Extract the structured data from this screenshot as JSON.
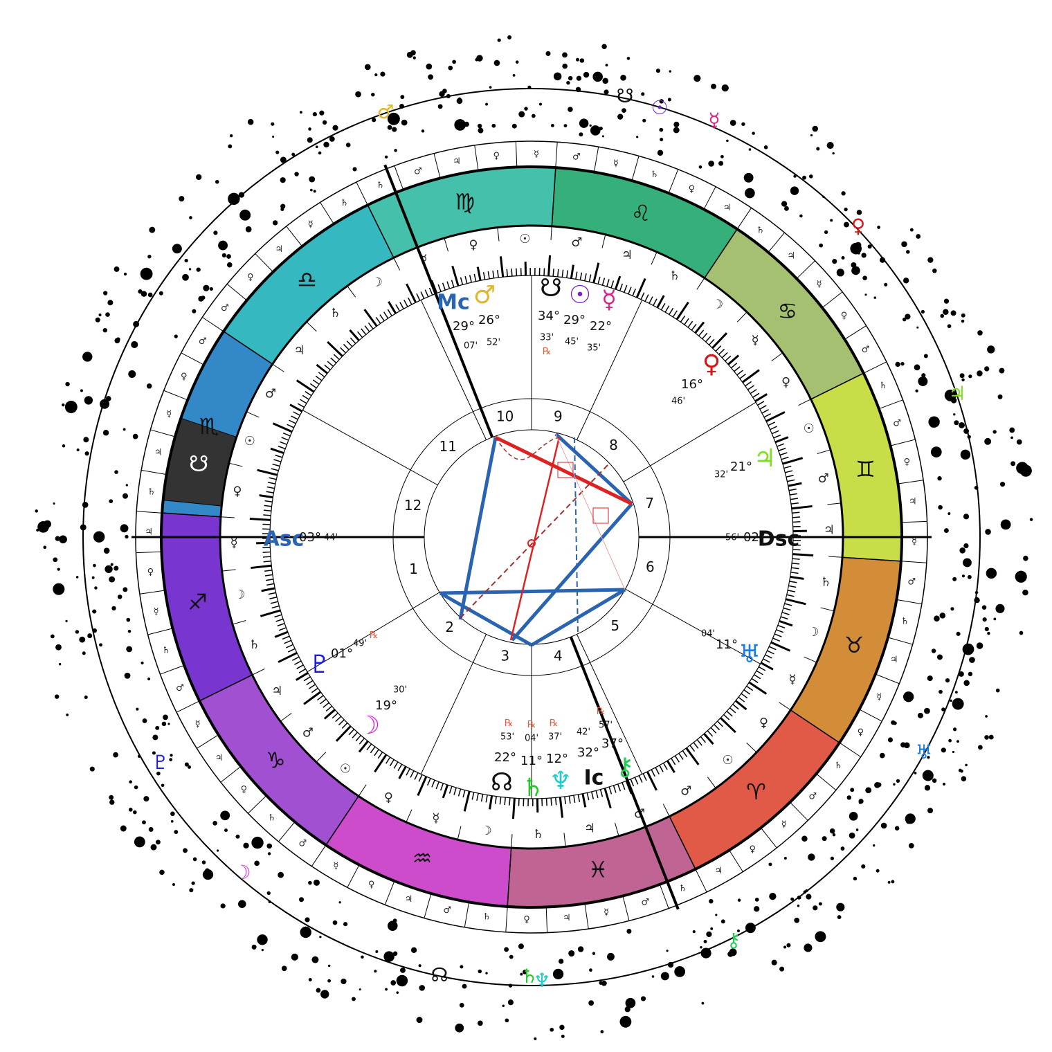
{
  "signs": [
    {
      "glyph": "♈︎",
      "color": "#e05a47"
    },
    {
      "glyph": "♉︎",
      "color": "#d38d38"
    },
    {
      "glyph": "♊︎",
      "color": "#c9dd48"
    },
    {
      "glyph": "♋︎",
      "color": "#a4c070"
    },
    {
      "glyph": "♌︎",
      "color": "#35b07a"
    },
    {
      "glyph": "♍︎",
      "color": "#45c0aa"
    },
    {
      "glyph": "♎︎",
      "color": "#35b8bf"
    },
    {
      "glyph": "♏︎",
      "color": "#3388c8"
    },
    {
      "glyph": "♐︎",
      "color": "#7835d0"
    },
    {
      "glyph": "♑︎",
      "color": "#a050d0"
    },
    {
      "glyph": "♒︎",
      "color": "#cc4ccc"
    },
    {
      "glyph": "♓︎",
      "color": "#c06494"
    }
  ],
  "band_marker": {
    "glyph": "☋",
    "color": "#333333"
  },
  "houses": [
    "1",
    "2",
    "3",
    "4",
    "5",
    "6",
    "7",
    "8",
    "9",
    "10",
    "11",
    "12"
  ],
  "planets": [
    {
      "glyph": "Mc",
      "color": "#2a63b0",
      "degree": "29°",
      "minute": "07'"
    },
    {
      "glyph": "♂",
      "color": "#e0b830",
      "degree": "26°",
      "minute": "52'"
    },
    {
      "glyph": "☋",
      "color": "#111111",
      "degree": "34°",
      "minute": "33'",
      "retrograde": "℞"
    },
    {
      "glyph": "☉",
      "color": "#7722cc",
      "degree": "29°",
      "minute": "45'"
    },
    {
      "glyph": "☿",
      "color": "#dd2288",
      "degree": "22°",
      "minute": "35'"
    },
    {
      "glyph": "♀",
      "color": "#d01818",
      "degree": "16°",
      "minute": "46'"
    },
    {
      "glyph": "♃",
      "color": "#80e020",
      "degree": "21°",
      "minute": "32'"
    },
    {
      "glyph": "♅",
      "color": "#1a7ee0",
      "degree": "11°",
      "minute": "04'"
    },
    {
      "glyph": "Dsc",
      "color": "#111111",
      "degree": "02°",
      "minute": "56'"
    },
    {
      "glyph": "Asc",
      "color": "#2a63b0",
      "degree": "03°",
      "minute": "44'"
    },
    {
      "glyph": "♇",
      "color": "#1a1ae0",
      "degree": "01°",
      "minute": "49'",
      "retrograde": "℞"
    },
    {
      "glyph": "☽",
      "color": "#e020e0",
      "degree": "19°",
      "minute": "30'"
    },
    {
      "glyph": "☊",
      "color": "#111111",
      "degree": "22°",
      "minute": "53'",
      "retrograde": "℞"
    },
    {
      "glyph": "♄",
      "color": "#22cc22",
      "degree": "11°",
      "minute": "04'",
      "retrograde": "℞"
    },
    {
      "glyph": "♆",
      "color": "#22cccc",
      "degree": "12°",
      "minute": "37'",
      "retrograde": "℞"
    },
    {
      "glyph": "Ic",
      "color": "#111111",
      "degree": "32°",
      "minute": "42'"
    },
    {
      "glyph": "⚷",
      "color": "#22cc55",
      "degree": "37°",
      "minute": "57'",
      "retrograde": "℞"
    }
  ],
  "outer_planets": [
    {
      "glyph": "♂",
      "color": "#e0b830"
    },
    {
      "glyph": "☋",
      "color": "#111111"
    },
    {
      "glyph": "☉",
      "color": "#7722cc"
    },
    {
      "glyph": "☿",
      "color": "#dd2288"
    },
    {
      "glyph": "♀",
      "color": "#d01818"
    },
    {
      "glyph": "♃",
      "color": "#80e020"
    },
    {
      "glyph": "♅",
      "color": "#1a7ee0"
    },
    {
      "glyph": "⚷",
      "color": "#22cc55"
    },
    {
      "glyph": "♄",
      "color": "#22cc22"
    },
    {
      "glyph": "♆",
      "color": "#22cccc"
    },
    {
      "glyph": "☊",
      "color": "#111111"
    },
    {
      "glyph": "☽",
      "color": "#e020e0"
    },
    {
      "glyph": "♇",
      "color": "#1a1ae0"
    }
  ],
  "decans": [
    "♂",
    "☉",
    "♀",
    "☿",
    "☽",
    "♄",
    "♃",
    "♂",
    "☉",
    "♀",
    "☿",
    "☽",
    "♄",
    "♃",
    "♂",
    "☉",
    "♀",
    "☿",
    "☽",
    "♄",
    "♃",
    "♂",
    "☉",
    "♀",
    "☿",
    "☽",
    "♄",
    "♃",
    "♂",
    "☉",
    "♀",
    "☿",
    "☽",
    "♄",
    "♃",
    "♂"
  ],
  "terms": [
    "♃",
    "♀",
    "☿",
    "♂",
    "♄",
    "♀",
    "☿",
    "♃",
    "♄",
    "♂",
    "☿",
    "♃",
    "♀",
    "♂",
    "♄",
    "♂",
    "♀",
    "☿",
    "♃",
    "♄",
    "♃",
    "♀",
    "♄",
    "☿",
    "♂",
    "☿",
    "♀",
    "♃",
    "♂",
    "♄",
    "♄",
    "☿",
    "♃",
    "♀",
    "♂",
    "♂",
    "♀",
    "☿",
    "♃",
    "♄",
    "♃",
    "♀",
    "☿",
    "♄",
    "♂",
    "☿",
    "♃",
    "♀",
    "♄",
    "♂",
    "☿",
    "♀",
    "♃",
    "♂",
    "♄",
    "♀",
    "♃",
    "☿",
    "♂",
    "♄"
  ]
}
